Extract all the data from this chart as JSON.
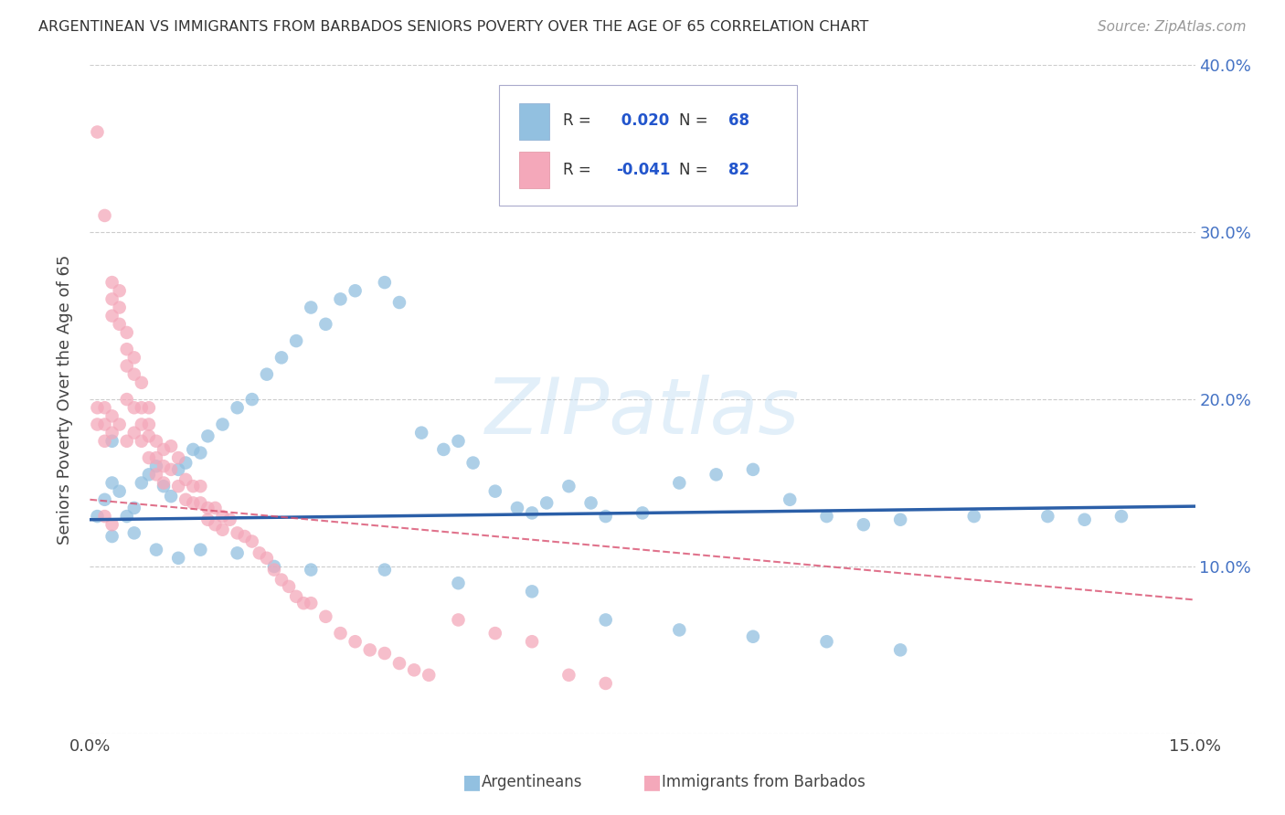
{
  "title": "ARGENTINEAN VS IMMIGRANTS FROM BARBADOS SENIORS POVERTY OVER THE AGE OF 65 CORRELATION CHART",
  "source": "Source: ZipAtlas.com",
  "ylabel": "Seniors Poverty Over the Age of 65",
  "xlim": [
    0,
    0.15
  ],
  "ylim": [
    0,
    0.4
  ],
  "ytick_vals": [
    0.0,
    0.1,
    0.2,
    0.3,
    0.4
  ],
  "blue_R": 0.02,
  "blue_N": 68,
  "pink_R": -0.041,
  "pink_N": 82,
  "blue_color": "#92C0E0",
  "pink_color": "#F4A8BA",
  "blue_line_color": "#2B5FA8",
  "pink_line_color": "#D95070",
  "grid_color": "#CCCCCC",
  "background_color": "#FFFFFF",
  "watermark": "ZIPatlas",
  "blue_scatter_x": [
    0.001,
    0.002,
    0.003,
    0.003,
    0.004,
    0.005,
    0.006,
    0.007,
    0.008,
    0.009,
    0.01,
    0.011,
    0.012,
    0.013,
    0.014,
    0.015,
    0.016,
    0.018,
    0.02,
    0.022,
    0.024,
    0.026,
    0.028,
    0.03,
    0.032,
    0.034,
    0.036,
    0.04,
    0.042,
    0.045,
    0.048,
    0.05,
    0.052,
    0.055,
    0.058,
    0.06,
    0.062,
    0.065,
    0.068,
    0.07,
    0.075,
    0.08,
    0.085,
    0.09,
    0.095,
    0.1,
    0.105,
    0.11,
    0.12,
    0.13,
    0.135,
    0.14,
    0.003,
    0.006,
    0.009,
    0.012,
    0.015,
    0.02,
    0.025,
    0.03,
    0.04,
    0.05,
    0.06,
    0.07,
    0.08,
    0.09,
    0.1,
    0.11
  ],
  "blue_scatter_y": [
    0.13,
    0.14,
    0.15,
    0.175,
    0.145,
    0.13,
    0.135,
    0.15,
    0.155,
    0.16,
    0.148,
    0.142,
    0.158,
    0.162,
    0.17,
    0.168,
    0.178,
    0.185,
    0.195,
    0.2,
    0.215,
    0.225,
    0.235,
    0.255,
    0.245,
    0.26,
    0.265,
    0.27,
    0.258,
    0.18,
    0.17,
    0.175,
    0.162,
    0.145,
    0.135,
    0.132,
    0.138,
    0.148,
    0.138,
    0.13,
    0.132,
    0.15,
    0.155,
    0.158,
    0.14,
    0.13,
    0.125,
    0.128,
    0.13,
    0.13,
    0.128,
    0.13,
    0.118,
    0.12,
    0.11,
    0.105,
    0.11,
    0.108,
    0.1,
    0.098,
    0.098,
    0.09,
    0.085,
    0.068,
    0.062,
    0.058,
    0.055,
    0.05
  ],
  "pink_scatter_x": [
    0.001,
    0.001,
    0.001,
    0.002,
    0.002,
    0.002,
    0.002,
    0.003,
    0.003,
    0.003,
    0.003,
    0.003,
    0.004,
    0.004,
    0.004,
    0.004,
    0.005,
    0.005,
    0.005,
    0.005,
    0.005,
    0.006,
    0.006,
    0.006,
    0.006,
    0.007,
    0.007,
    0.007,
    0.007,
    0.008,
    0.008,
    0.008,
    0.008,
    0.009,
    0.009,
    0.009,
    0.01,
    0.01,
    0.01,
    0.011,
    0.011,
    0.012,
    0.012,
    0.013,
    0.013,
    0.014,
    0.014,
    0.015,
    0.015,
    0.016,
    0.016,
    0.017,
    0.017,
    0.018,
    0.018,
    0.019,
    0.02,
    0.021,
    0.022,
    0.023,
    0.024,
    0.025,
    0.026,
    0.027,
    0.028,
    0.029,
    0.03,
    0.032,
    0.034,
    0.036,
    0.038,
    0.04,
    0.042,
    0.044,
    0.046,
    0.05,
    0.055,
    0.06,
    0.065,
    0.07,
    0.002,
    0.003
  ],
  "pink_scatter_y": [
    0.36,
    0.195,
    0.185,
    0.31,
    0.195,
    0.185,
    0.175,
    0.27,
    0.26,
    0.25,
    0.19,
    0.18,
    0.265,
    0.255,
    0.245,
    0.185,
    0.24,
    0.23,
    0.22,
    0.2,
    0.175,
    0.225,
    0.215,
    0.195,
    0.18,
    0.21,
    0.195,
    0.185,
    0.175,
    0.195,
    0.185,
    0.178,
    0.165,
    0.175,
    0.165,
    0.155,
    0.17,
    0.16,
    0.15,
    0.172,
    0.158,
    0.165,
    0.148,
    0.152,
    0.14,
    0.148,
    0.138,
    0.148,
    0.138,
    0.135,
    0.128,
    0.135,
    0.125,
    0.13,
    0.122,
    0.128,
    0.12,
    0.118,
    0.115,
    0.108,
    0.105,
    0.098,
    0.092,
    0.088,
    0.082,
    0.078,
    0.078,
    0.07,
    0.06,
    0.055,
    0.05,
    0.048,
    0.042,
    0.038,
    0.035,
    0.068,
    0.06,
    0.055,
    0.035,
    0.03,
    0.13,
    0.125
  ]
}
